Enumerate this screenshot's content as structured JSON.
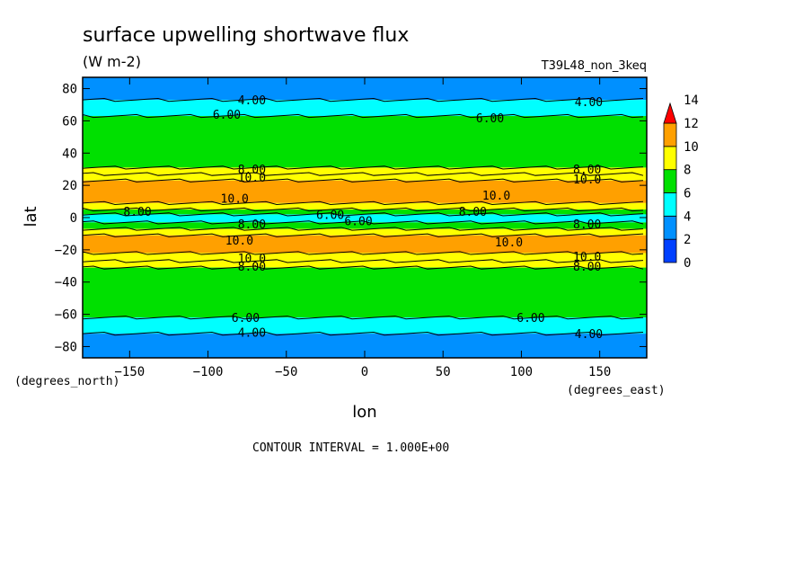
{
  "chart_data": {
    "type": "heatmap",
    "title": "surface upwelling shortwave flux",
    "units": "(W m-2)",
    "dataset": "T39L48_non_3keq",
    "xlabel": "lon",
    "ylabel": "lat",
    "xunits": "(degrees_east)",
    "yunits": "(degrees_north)",
    "xlim": [
      -180,
      180
    ],
    "ylim": [
      -87,
      87
    ],
    "xticks": [
      -150,
      -100,
      -50,
      0,
      50,
      100,
      150
    ],
    "yticks": [
      -80,
      -60,
      -40,
      -20,
      0,
      20,
      40,
      60,
      80
    ],
    "footer": "CONTOUR INTERVAL = 1.000E+00",
    "colorbar": {
      "levels": [
        0,
        2,
        4,
        6,
        8,
        10,
        12,
        14
      ],
      "colors": [
        "#0040ff",
        "#0090ff",
        "#00ffff",
        "#00e000",
        "#ffff00",
        "#ffa000"
      ],
      "overflow_color": "#ff0000"
    },
    "bands": [
      {
        "lat_from": 73,
        "lat_to": 87,
        "value": 3
      },
      {
        "lat_from": 63,
        "lat_to": 73,
        "value": 5
      },
      {
        "lat_from": 31,
        "lat_to": 63,
        "value": 7
      },
      {
        "lat_from": 27,
        "lat_to": 31,
        "value": 9
      },
      {
        "lat_from": 23,
        "lat_to": 27,
        "value": 9
      },
      {
        "lat_from": 9,
        "lat_to": 23,
        "value": 11
      },
      {
        "lat_from": 5,
        "lat_to": 9,
        "value": 9
      },
      {
        "lat_from": 2,
        "lat_to": 5,
        "value": 7
      },
      {
        "lat_from": -3,
        "lat_to": 2,
        "value": 5
      },
      {
        "lat_from": -7,
        "lat_to": -3,
        "value": 7
      },
      {
        "lat_from": -11,
        "lat_to": -7,
        "value": 9
      },
      {
        "lat_from": -22,
        "lat_to": -11,
        "value": 11
      },
      {
        "lat_from": -27,
        "lat_to": -22,
        "value": 9
      },
      {
        "lat_from": -31,
        "lat_to": -27,
        "value": 9
      },
      {
        "lat_from": -62,
        "lat_to": -31,
        "value": 7
      },
      {
        "lat_from": -72,
        "lat_to": -62,
        "value": 5
      },
      {
        "lat_from": -87,
        "lat_to": -72,
        "value": 3
      }
    ],
    "contour_labels": [
      {
        "text": "4.00",
        "lon": -72,
        "lat": 73
      },
      {
        "text": "4.00",
        "lon": 143,
        "lat": 72
      },
      {
        "text": "6.00",
        "lon": -88,
        "lat": 64
      },
      {
        "text": "6.00",
        "lon": 80,
        "lat": 62
      },
      {
        "text": "8.00",
        "lon": -72,
        "lat": 30
      },
      {
        "text": "10.0",
        "lon": -72,
        "lat": 25
      },
      {
        "text": "8.00",
        "lon": 142,
        "lat": 30
      },
      {
        "text": "10.0",
        "lon": 142,
        "lat": 24
      },
      {
        "text": "10.0",
        "lon": -83,
        "lat": 12
      },
      {
        "text": "10.0",
        "lon": 84,
        "lat": 14
      },
      {
        "text": "8.00",
        "lon": -145,
        "lat": 4
      },
      {
        "text": "8.00",
        "lon": 69,
        "lat": 4
      },
      {
        "text": "8.00",
        "lon": -72,
        "lat": -4
      },
      {
        "text": "8.00",
        "lon": 142,
        "lat": -4
      },
      {
        "text": "6.00",
        "lon": -22,
        "lat": 2
      },
      {
        "text": "6.00",
        "lon": -4,
        "lat": -2
      },
      {
        "text": "10.0",
        "lon": -80,
        "lat": -14
      },
      {
        "text": "10.0",
        "lon": 92,
        "lat": -15
      },
      {
        "text": "10.0",
        "lon": -72,
        "lat": -25
      },
      {
        "text": "8.00",
        "lon": -72,
        "lat": -30
      },
      {
        "text": "10.0",
        "lon": 142,
        "lat": -24
      },
      {
        "text": "8.00",
        "lon": 142,
        "lat": -30
      },
      {
        "text": "6.00",
        "lon": -76,
        "lat": -62
      },
      {
        "text": "6.00",
        "lon": 106,
        "lat": -62
      },
      {
        "text": "4.00",
        "lon": -72,
        "lat": -71
      },
      {
        "text": "4.00",
        "lon": 143,
        "lat": -72
      }
    ]
  }
}
